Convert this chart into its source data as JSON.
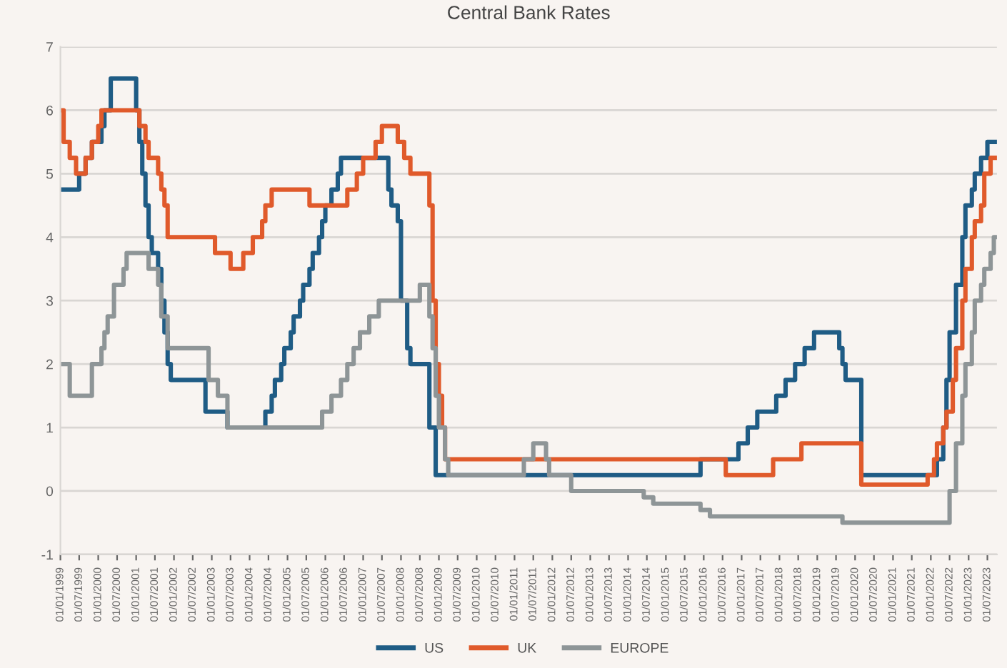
{
  "chart_data": {
    "type": "step",
    "title": "Central Bank Rates",
    "xlim": [
      "1999-01-01",
      "2023-10-01"
    ],
    "ylim": [
      -1,
      7
    ],
    "yticks": [
      -1,
      0,
      1,
      2,
      3,
      4,
      5,
      6,
      7
    ],
    "xticks": [
      {
        "value": "1999-01-01",
        "label": "01/01/1999"
      },
      {
        "value": "1999-07-01",
        "label": "01/07/1999"
      },
      {
        "value": "2000-01-01",
        "label": "01/01/2000"
      },
      {
        "value": "2000-07-01",
        "label": "01/07/2000"
      },
      {
        "value": "2001-01-01",
        "label": "01/01/2001"
      },
      {
        "value": "2001-07-01",
        "label": "01/07/2001"
      },
      {
        "value": "2002-01-01",
        "label": "01/01/2002"
      },
      {
        "value": "2002-07-01",
        "label": "01/07/2002"
      },
      {
        "value": "2003-01-01",
        "label": "01/01/2003"
      },
      {
        "value": "2003-07-01",
        "label": "01/07/2003"
      },
      {
        "value": "2004-01-01",
        "label": "01/01/2004"
      },
      {
        "value": "2004-07-01",
        "label": "01/07/2004"
      },
      {
        "value": "2005-01-01",
        "label": "01/01/2005"
      },
      {
        "value": "2005-07-01",
        "label": "01/07/2005"
      },
      {
        "value": "2006-01-01",
        "label": "01/01/2006"
      },
      {
        "value": "2006-07-01",
        "label": "01/07/2006"
      },
      {
        "value": "2007-01-01",
        "label": "01/01/2007"
      },
      {
        "value": "2007-07-01",
        "label": "01/07/2007"
      },
      {
        "value": "2008-01-01",
        "label": "01/01/2008"
      },
      {
        "value": "2008-07-01",
        "label": "01/07/2008"
      },
      {
        "value": "2009-01-01",
        "label": "01/01/2009"
      },
      {
        "value": "2009-07-01",
        "label": "01/07/2009"
      },
      {
        "value": "2010-01-01",
        "label": "01/01/2010"
      },
      {
        "value": "2010-07-01",
        "label": "01/07/2010"
      },
      {
        "value": "2011-01-01",
        "label": "01/01/2011"
      },
      {
        "value": "2011-07-01",
        "label": "01/07/2011"
      },
      {
        "value": "2012-01-01",
        "label": "01/01/2012"
      },
      {
        "value": "2012-07-01",
        "label": "01/07/2012"
      },
      {
        "value": "2013-01-01",
        "label": "01/01/2013"
      },
      {
        "value": "2013-07-01",
        "label": "01/07/2013"
      },
      {
        "value": "2014-01-01",
        "label": "01/01/2014"
      },
      {
        "value": "2014-07-01",
        "label": "01/07/2014"
      },
      {
        "value": "2015-01-01",
        "label": "01/01/2015"
      },
      {
        "value": "2015-07-01",
        "label": "01/07/2015"
      },
      {
        "value": "2016-01-01",
        "label": "01/01/2016"
      },
      {
        "value": "2016-07-01",
        "label": "01/07/2016"
      },
      {
        "value": "2017-01-01",
        "label": "01/01/2017"
      },
      {
        "value": "2017-07-01",
        "label": "01/07/2017"
      },
      {
        "value": "2018-01-01",
        "label": "01/01/2018"
      },
      {
        "value": "2018-07-01",
        "label": "01/07/2018"
      },
      {
        "value": "2019-01-01",
        "label": "01/01/2019"
      },
      {
        "value": "2019-07-01",
        "label": "01/07/2019"
      },
      {
        "value": "2020-01-01",
        "label": "01/01/2020"
      },
      {
        "value": "2020-07-01",
        "label": "01/07/2020"
      },
      {
        "value": "2021-01-01",
        "label": "01/01/2021"
      },
      {
        "value": "2021-07-01",
        "label": "01/07/2021"
      },
      {
        "value": "2022-01-01",
        "label": "01/01/2022"
      },
      {
        "value": "2022-07-01",
        "label": "01/07/2022"
      },
      {
        "value": "2023-01-01",
        "label": "01/01/2023"
      },
      {
        "value": "2023-07-01",
        "label": "01/07/2023"
      }
    ],
    "grid": "y",
    "legend": "bottom",
    "line_style": "solid",
    "marker": "none",
    "series": [
      {
        "name": "US",
        "color": "#1f5c85",
        "x": [
          "1999-01",
          "1999-07",
          "1999-09",
          "1999-11",
          "2000-02",
          "2000-03",
          "2000-05",
          "2001-01",
          "2001-02",
          "2001-03",
          "2001-04",
          "2001-05",
          "2001-06",
          "2001-08",
          "2001-09",
          "2001-10",
          "2001-11",
          "2001-12",
          "2002-11",
          "2003-06",
          "2004-06",
          "2004-08",
          "2004-09",
          "2004-11",
          "2004-12",
          "2005-02",
          "2005-03",
          "2005-05",
          "2005-06",
          "2005-08",
          "2005-09",
          "2005-11",
          "2005-12",
          "2006-01",
          "2006-03",
          "2006-05",
          "2006-06",
          "2007-09",
          "2007-10",
          "2007-12",
          "2008-01",
          "2008-03",
          "2008-04",
          "2008-10",
          "2008-12",
          "2015-12",
          "2016-12",
          "2017-03",
          "2017-06",
          "2017-12",
          "2018-03",
          "2018-06",
          "2018-09",
          "2018-12",
          "2019-08",
          "2019-09",
          "2019-10",
          "2020-03",
          "2022-03",
          "2022-05",
          "2022-06",
          "2022-07",
          "2022-09",
          "2022-11",
          "2022-12",
          "2023-02",
          "2023-03",
          "2023-05",
          "2023-07",
          "2023-10"
        ],
        "values": [
          4.75,
          5.0,
          5.25,
          5.5,
          5.75,
          6.0,
          6.5,
          6.0,
          5.5,
          5.0,
          4.5,
          4.0,
          3.75,
          3.5,
          3.0,
          2.5,
          2.0,
          1.75,
          1.25,
          1.0,
          1.25,
          1.5,
          1.75,
          2.0,
          2.25,
          2.5,
          2.75,
          3.0,
          3.25,
          3.5,
          3.75,
          4.0,
          4.25,
          4.5,
          4.75,
          5.0,
          5.25,
          4.75,
          4.5,
          4.25,
          3.0,
          2.25,
          2.0,
          1.0,
          0.25,
          0.5,
          0.75,
          1.0,
          1.25,
          1.5,
          1.75,
          2.0,
          2.25,
          2.5,
          2.25,
          2.0,
          1.75,
          0.25,
          0.5,
          1.0,
          1.75,
          2.5,
          3.25,
          4.0,
          4.5,
          4.75,
          5.0,
          5.25,
          5.5,
          5.5
        ]
      },
      {
        "name": "UK",
        "color": "#e05a2b",
        "x": [
          "1999-01",
          "1999-02",
          "1999-04",
          "1999-06",
          "1999-09",
          "1999-11",
          "2000-01",
          "2000-02",
          "2001-02",
          "2001-04",
          "2001-05",
          "2001-08",
          "2001-09",
          "2001-10",
          "2001-11",
          "2003-02",
          "2003-07",
          "2003-11",
          "2004-02",
          "2004-05",
          "2004-06",
          "2004-08",
          "2005-08",
          "2006-08",
          "2006-11",
          "2007-01",
          "2007-05",
          "2007-07",
          "2007-12",
          "2008-02",
          "2008-04",
          "2008-10",
          "2008-11",
          "2008-12",
          "2009-01",
          "2009-02",
          "2009-03",
          "2016-08",
          "2017-11",
          "2018-08",
          "2020-03",
          "2021-12",
          "2022-02",
          "2022-03",
          "2022-05",
          "2022-06",
          "2022-08",
          "2022-09",
          "2022-11",
          "2022-12",
          "2023-02",
          "2023-03",
          "2023-05",
          "2023-06",
          "2023-08",
          "2023-10"
        ],
        "values": [
          6.0,
          5.5,
          5.25,
          5.0,
          5.25,
          5.5,
          5.75,
          6.0,
          5.75,
          5.5,
          5.25,
          5.0,
          4.75,
          4.5,
          4.0,
          3.75,
          3.5,
          3.75,
          4.0,
          4.25,
          4.5,
          4.75,
          4.5,
          4.75,
          5.0,
          5.25,
          5.5,
          5.75,
          5.5,
          5.25,
          5.0,
          4.5,
          3.0,
          2.0,
          1.5,
          1.0,
          0.5,
          0.25,
          0.5,
          0.75,
          0.1,
          0.25,
          0.5,
          0.75,
          1.0,
          1.25,
          1.75,
          2.25,
          3.0,
          3.5,
          4.0,
          4.25,
          4.5,
          5.0,
          5.25,
          5.25
        ]
      },
      {
        "name": "EUROPE",
        "color": "#8e9597",
        "x": [
          "1999-01",
          "1999-04",
          "1999-11",
          "2000-02",
          "2000-03",
          "2000-04",
          "2000-06",
          "2000-09",
          "2000-10",
          "2001-05",
          "2001-08",
          "2001-09",
          "2001-11",
          "2002-12",
          "2003-03",
          "2003-06",
          "2005-12",
          "2006-03",
          "2006-06",
          "2006-08",
          "2006-10",
          "2006-12",
          "2007-03",
          "2007-06",
          "2008-07",
          "2008-10",
          "2008-11",
          "2008-12",
          "2009-01",
          "2009-03",
          "2009-04",
          "2011-04",
          "2011-07",
          "2011-11",
          "2011-12",
          "2012-07",
          "2014-06",
          "2014-09",
          "2015-12",
          "2016-03",
          "2019-09",
          "2022-07",
          "2022-09",
          "2022-11",
          "2022-12",
          "2023-02",
          "2023-03",
          "2023-05",
          "2023-06",
          "2023-08",
          "2023-09",
          "2023-10"
        ],
        "values": [
          2.0,
          1.5,
          2.0,
          2.25,
          2.5,
          2.75,
          3.25,
          3.5,
          3.75,
          3.5,
          3.25,
          2.75,
          2.25,
          1.75,
          1.5,
          1.0,
          1.25,
          1.5,
          1.75,
          2.0,
          2.25,
          2.5,
          2.75,
          3.0,
          3.25,
          2.75,
          2.25,
          1.5,
          1.0,
          0.5,
          0.25,
          0.5,
          0.75,
          0.5,
          0.25,
          0.0,
          -0.1,
          -0.2,
          -0.3,
          -0.4,
          -0.5,
          0.0,
          0.75,
          1.5,
          2.0,
          2.5,
          3.0,
          3.25,
          3.5,
          3.75,
          4.0,
          4.0
        ]
      }
    ]
  }
}
